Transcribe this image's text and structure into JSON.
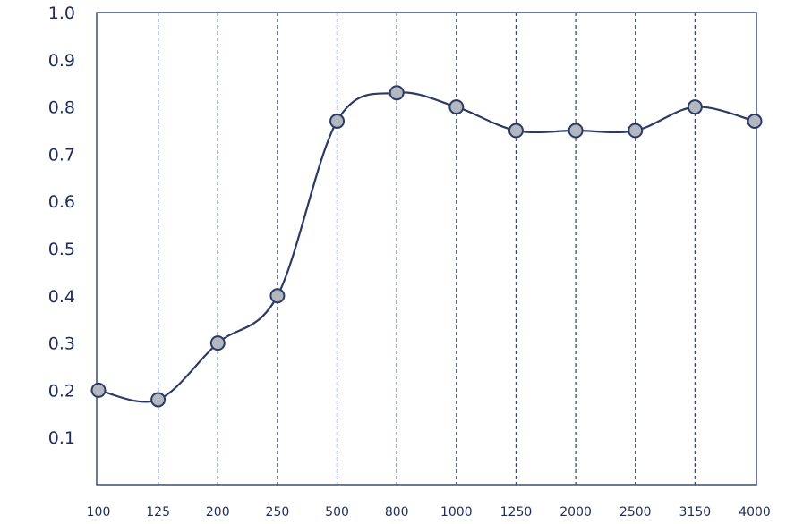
{
  "chart_data": {
    "type": "line",
    "title": "",
    "xlabel": "",
    "ylabel": "",
    "categories": [
      "100",
      "125",
      "200",
      "250",
      "500",
      "800",
      "1000",
      "1250",
      "2000",
      "2500",
      "3150",
      "4000"
    ],
    "values": [
      0.2,
      0.18,
      0.3,
      0.4,
      0.77,
      0.83,
      0.8,
      0.75,
      0.75,
      0.75,
      0.8,
      0.77
    ],
    "yticks": [
      "0.1",
      "0.2",
      "0.3",
      "0.4",
      "0.5",
      "0.6",
      "0.7",
      "0.8",
      "0.9",
      "1.0"
    ],
    "ylim": [
      0,
      1.0
    ],
    "grid": "vertical dashed",
    "line_color": "#2c3a66",
    "marker_color": "#b3b7c0"
  }
}
